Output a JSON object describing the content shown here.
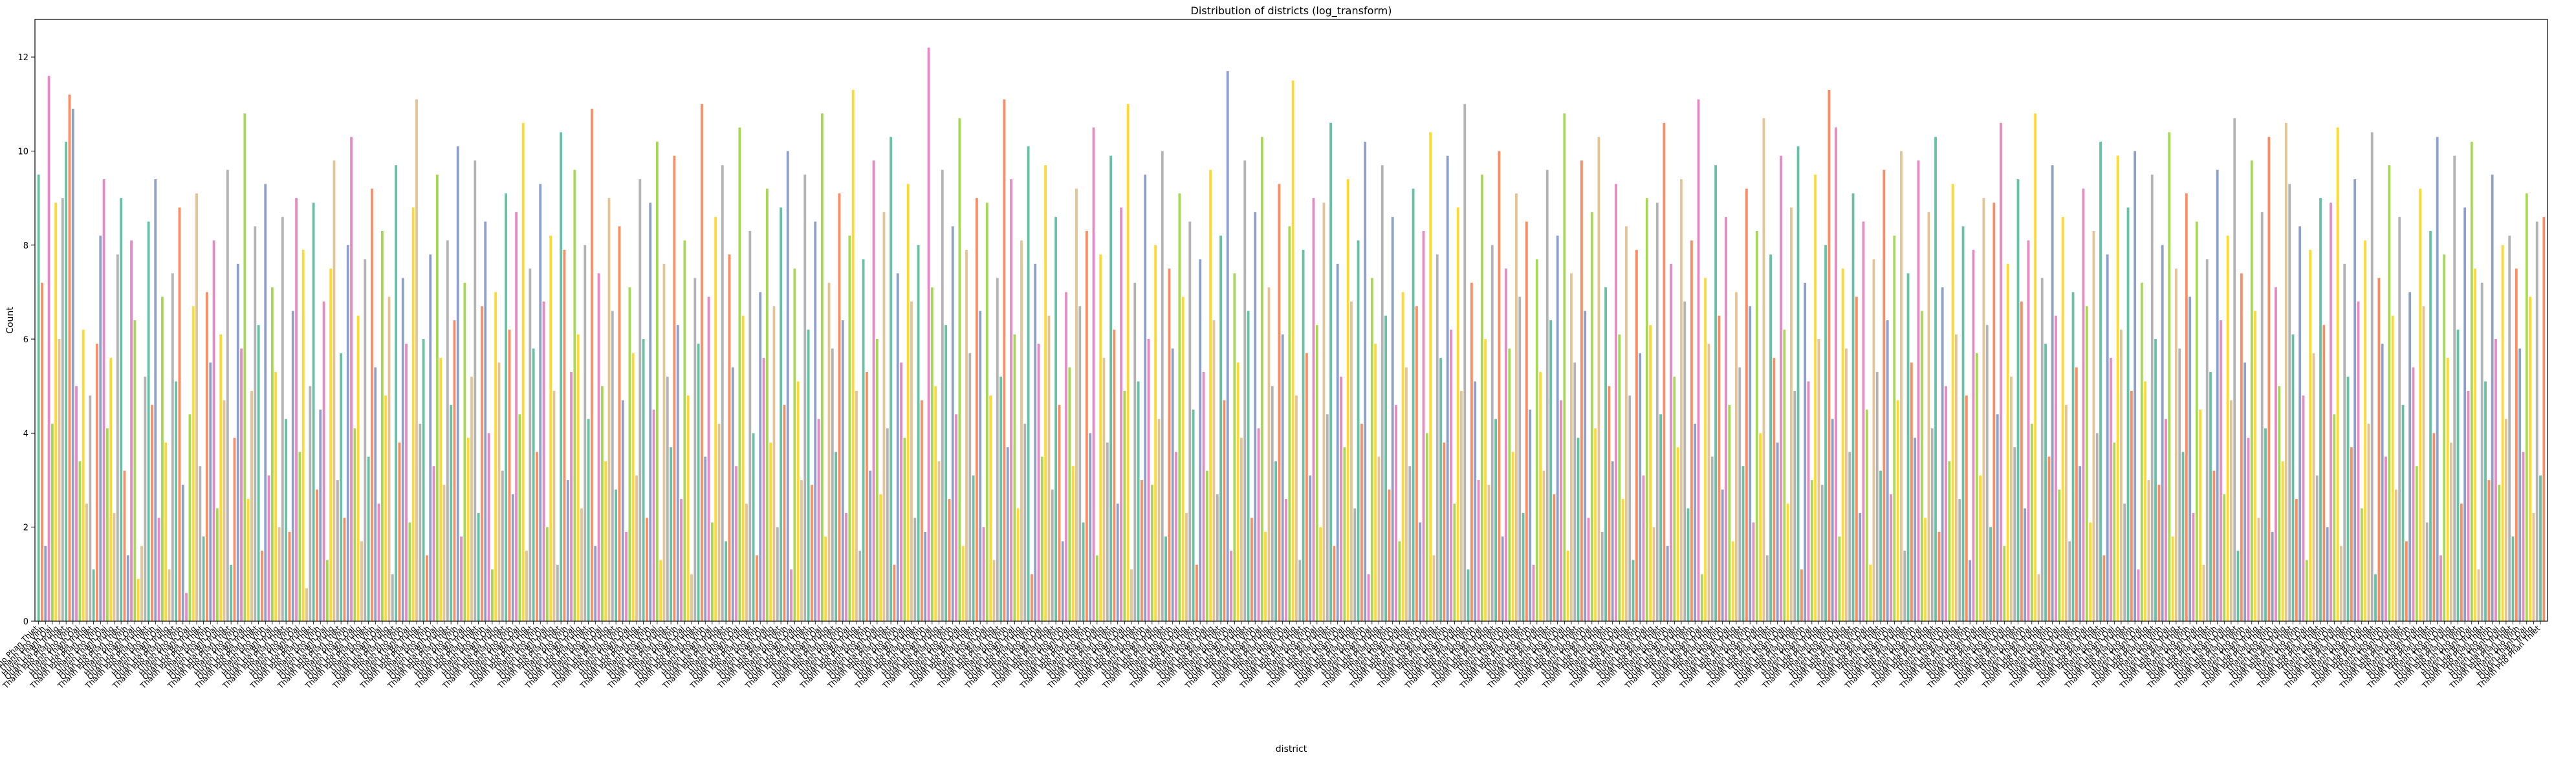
{
  "chart_data": {
    "type": "bar",
    "title": "Distribution of districts (log_transform)",
    "xlabel": "district",
    "ylabel": "Count",
    "ylim": [
      0,
      12.8
    ],
    "yticks": [
      0,
      2,
      4,
      6,
      8,
      10,
      12
    ],
    "grid": false,
    "legend": "none",
    "palette": [
      "#66c2a5",
      "#fc8d62",
      "#8da0cb",
      "#e78ac3",
      "#a6d854",
      "#ffd92f",
      "#e5c494",
      "#b3b3b3"
    ],
    "label_samples": [
      "Thanh Pho Phan Thiet",
      "Thanh pho Vinh",
      "Huyen Thanh Oai",
      "Quan Hai Ba Trung"
    ],
    "values": [
      9.5,
      7.2,
      1.6,
      11.6,
      4.2,
      8.9,
      6.0,
      9.0,
      10.2,
      11.2,
      10.9,
      5.0,
      3.4,
      6.2,
      2.5,
      4.8,
      1.1,
      5.9,
      8.2,
      9.4,
      4.1,
      5.6,
      2.3,
      7.8,
      9.0,
      3.2,
      1.4,
      8.1,
      6.4,
      0.9,
      1.6,
      5.2,
      8.5,
      4.6,
      9.4,
      2.2,
      6.9,
      3.8,
      1.1,
      7.4,
      5.1,
      8.8,
      2.9,
      0.6,
      4.4,
      6.7,
      9.1,
      3.3,
      1.8,
      7.0,
      5.5,
      8.1,
      2.4,
      6.1,
      4.7,
      9.6,
      1.2,
      3.9,
      7.6,
      5.8,
      10.8,
      2.6,
      4.9,
      8.4,
      6.3,
      1.5,
      9.3,
      3.1,
      7.1,
      5.3,
      2.0,
      8.6,
      4.3,
      1.9,
      6.6,
      9.0,
      3.6,
      7.9,
      0.7,
      5.0,
      8.9,
      2.8,
      4.5,
      6.8,
      1.3,
      7.5,
      9.8,
      3.0,
      5.7,
      2.2,
      8.0,
      10.3,
      4.1,
      6.5,
      1.7,
      7.7,
      3.5,
      9.2,
      5.4,
      2.5,
      8.3,
      4.8,
      6.9,
      1.0,
      9.7,
      3.8,
      7.3,
      5.9,
      2.1,
      8.8,
      11.1,
      4.2,
      6.0,
      1.4,
      7.8,
      3.3,
      9.5,
      5.6,
      2.9,
      8.1,
      4.6,
      6.4,
      10.1,
      1.8,
      7.2,
      3.9,
      5.2,
      9.8,
      2.3,
      6.7,
      8.5,
      4.0,
      1.1,
      7.0,
      5.5,
      3.2,
      9.1,
      6.2,
      2.7,
      8.7,
      4.4,
      10.6,
      1.5,
      7.5,
      5.8,
      3.6,
      9.3,
      6.8,
      2.0,
      8.2,
      4.9,
      1.2,
      10.4,
      7.9,
      3.0,
      5.3,
      9.6,
      6.1,
      2.4,
      8.0,
      4.3,
      10.9,
      1.6,
      7.4,
      5.0,
      3.4,
      9.0,
      6.6,
      2.8,
      8.4,
      4.7,
      1.9,
      7.1,
      5.7,
      3.1,
      9.4,
      6.0,
      2.2,
      8.9,
      4.5,
      10.2,
      1.3,
      7.6,
      5.2,
      3.7,
      9.9,
      6.3,
      2.6,
      8.1,
      4.8,
      1.0,
      7.3,
      5.9,
      11.0,
      3.5,
      6.9,
      2.1,
      8.6,
      4.2,
      9.7,
      1.7,
      7.8,
      5.4,
      3.3,
      10.5,
      6.5,
      2.5,
      8.3,
      4.0,
      1.4,
      7.0,
      5.6,
      9.2,
      3.8,
      6.7,
      2.0,
      8.8,
      4.6,
      10.0,
      1.1,
      7.5,
      5.1,
      3.0,
      9.5,
      6.2,
      2.9,
      8.5,
      4.3,
      10.8,
      1.8,
      7.2,
      5.8,
      3.6,
      9.1,
      6.4,
      2.3,
      8.2,
      11.3,
      4.9,
      1.5,
      7.7,
      5.3,
      3.2,
      9.8,
      6.0,
      2.7,
      8.7,
      4.1,
      10.3,
      1.2,
      7.4,
      5.5,
      3.9,
      9.3,
      6.8,
      2.2,
      8.0,
      4.7,
      1.9,
      12.2,
      7.1,
      5.0,
      3.4,
      9.6,
      6.3,
      2.6,
      8.4,
      4.4,
      10.7,
      1.6,
      7.9,
      5.7,
      3.1,
      9.0,
      6.6,
      2.0,
      8.9,
      4.8,
      1.3,
      7.3,
      5.2,
      11.1,
      3.7,
      9.4,
      6.1,
      2.4,
      8.1,
      4.2,
      10.1,
      1.0,
      7.6,
      5.9,
      3.5,
      9.7,
      6.5,
      2.8,
      8.6,
      4.6,
      1.7,
      7.0,
      5.4,
      3.3,
      9.2,
      6.7,
      2.1,
      8.3,
      4.0,
      10.5,
      1.4,
      7.8,
      5.6,
      3.8,
      9.9,
      6.2,
      2.5,
      8.8,
      4.9,
      11.0,
      1.1,
      7.2,
      5.1,
      3.0,
      9.5,
      6.0,
      2.9,
      8.0,
      4.3,
      10.0,
      1.8,
      7.5,
      5.8,
      3.6,
      9.1,
      6.9,
      2.3,
      8.5,
      4.5,
      1.2,
      7.7,
      5.3,
      3.2,
      9.6,
      6.4,
      2.7,
      8.2,
      4.7,
      11.7,
      1.5,
      7.4,
      5.5,
      3.9,
      9.8,
      6.6,
      2.2,
      8.7,
      4.1,
      10.3,
      1.9,
      7.1,
      5.0,
      3.4,
      9.3,
      6.1,
      2.6,
      8.4,
      11.5,
      4.8,
      1.3,
      7.9,
      5.7,
      3.1,
      9.0,
      6.3,
      2.0,
      8.9,
      4.4,
      10.6,
      1.6,
      7.6,
      5.2,
      3.7,
      9.4,
      6.8,
      2.4,
      8.1,
      4.2,
      10.2,
      1.0,
      7.3,
      5.9,
      3.5,
      9.7,
      6.5,
      2.8,
      8.6,
      4.6,
      1.7,
      7.0,
      5.4,
      3.3,
      9.2,
      6.7,
      2.1,
      8.3,
      4.0,
      10.4,
      1.4,
      7.8,
      5.6,
      3.8,
      9.9,
      6.2,
      2.5,
      8.8,
      4.9,
      11.0,
      1.1,
      7.2,
      5.1,
      3.0,
      9.5,
      6.0,
      2.9,
      8.0,
      4.3,
      10.0,
      1.8,
      7.5,
      5.8,
      3.6,
      9.1,
      6.9,
      2.3,
      8.5,
      4.5,
      1.2,
      7.7,
      5.3,
      3.2,
      9.6,
      6.4,
      2.7,
      8.2,
      4.7,
      10.8,
      1.5,
      7.4,
      5.5,
      3.9,
      9.8,
      6.6,
      2.2,
      8.7,
      4.1,
      10.3,
      1.9,
      7.1,
      5.0,
      3.4,
      9.3,
      6.1,
      2.6,
      8.4,
      4.8,
      1.3,
      7.9,
      5.7,
      3.1,
      9.0,
      6.3,
      2.0,
      8.9,
      4.4,
      10.6,
      1.6,
      7.6,
      5.2,
      3.7,
      9.4,
      6.8,
      2.4,
      8.1,
      4.2,
      11.1,
      1.0,
      7.3,
      5.9,
      3.5,
      9.7,
      6.5,
      2.8,
      8.6,
      4.6,
      1.7,
      7.0,
      5.4,
      3.3,
      9.2,
      6.7,
      2.1,
      8.3,
      4.0,
      10.7,
      1.4,
      7.8,
      5.6,
      3.8,
      9.9,
      6.2,
      2.5,
      8.8,
      4.9,
      10.1,
      1.1,
      7.2,
      5.1,
      3.0,
      9.5,
      6.0,
      2.9,
      8.0,
      11.3,
      4.3,
      10.5,
      1.8,
      7.5,
      5.8,
      3.6,
      9.1,
      6.9,
      2.3,
      8.5,
      4.5,
      1.2,
      7.7,
      5.3,
      3.2,
      9.6,
      6.4,
      2.7,
      8.2,
      4.7,
      10.0,
      1.5,
      7.4,
      5.5,
      3.9,
      9.8,
      6.6,
      2.2,
      8.7,
      4.1,
      10.3,
      1.9,
      7.1,
      5.0,
      3.4,
      9.3,
      6.1,
      2.6,
      8.4,
      4.8,
      1.3,
      7.9,
      5.7,
      3.1,
      9.0,
      6.3,
      2.0,
      8.9,
      4.4,
      10.6,
      1.6,
      7.6,
      5.2,
      3.7,
      9.4,
      6.8,
      2.4,
      8.1,
      4.2,
      10.8,
      1.0,
      7.3,
      5.9,
      3.5,
      9.7,
      6.5,
      2.8,
      8.6,
      4.6,
      1.7,
      7.0,
      5.4,
      3.3,
      9.2,
      6.7,
      2.1,
      8.3,
      4.0,
      10.2,
      1.4,
      7.8,
      5.6,
      3.8,
      9.9,
      6.2,
      2.5,
      8.8,
      4.9,
      10.0,
      1.1,
      7.2,
      5.1,
      3.0,
      9.5,
      6.0,
      2.9,
      8.0,
      4.3,
      10.4,
      1.8,
      7.5,
      5.8,
      3.6,
      9.1,
      6.9,
      2.3,
      8.5,
      4.5,
      1.2,
      7.7,
      5.3,
      3.2,
      9.6,
      6.4,
      2.7,
      8.2,
      4.7,
      10.7,
      1.5,
      7.4,
      5.5,
      3.9,
      9.8,
      6.6,
      2.2,
      8.7,
      4.1,
      10.3,
      1.9,
      7.1,
      5.0,
      3.4,
      10.6,
      9.3,
      6.1,
      2.6,
      8.4,
      4.8,
      1.3,
      7.9,
      5.7,
      3.1,
      9.0,
      6.3,
      2.0,
      8.9,
      4.4,
      10.5,
      1.6,
      7.6,
      5.2,
      3.7,
      9.4,
      6.8,
      2.4,
      8.1,
      4.2,
      10.4,
      1.0,
      7.3,
      5.9,
      3.5,
      9.7,
      6.5,
      2.8,
      8.6,
      4.6,
      1.7,
      7.0,
      5.4,
      3.3,
      9.2,
      6.7,
      2.1,
      8.3,
      4.0,
      10.3,
      1.4,
      7.8,
      5.6,
      3.8,
      9.9,
      6.2,
      2.5,
      8.8,
      4.9,
      10.2,
      7.5,
      1.1,
      7.2,
      5.1,
      3.0,
      9.5,
      6.0,
      2.9,
      8.0,
      4.3,
      8.2,
      1.8,
      7.5,
      5.8,
      3.6,
      9.1,
      6.9,
      2.3,
      8.5,
      3.1,
      8.6
    ]
  }
}
